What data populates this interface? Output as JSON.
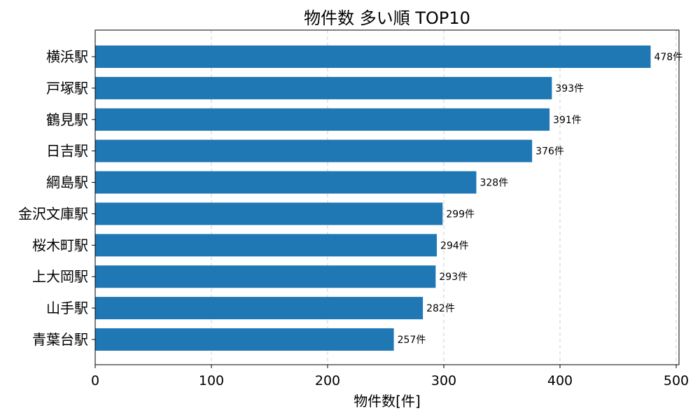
{
  "chart_data": {
    "type": "bar",
    "orientation": "horizontal",
    "title": "物件数 多い順 TOP10",
    "xlabel": "物件数[件]",
    "ylabel": "",
    "categories": [
      "横浜駅",
      "戸塚駅",
      "鶴見駅",
      "日吉駅",
      "綱島駅",
      "金沢文庫駅",
      "桜木町駅",
      "上大岡駅",
      "山手駅",
      "青葉台駅"
    ],
    "values": [
      478,
      393,
      391,
      376,
      328,
      299,
      294,
      293,
      282,
      257
    ],
    "data_labels": [
      "478件",
      "393件",
      "391件",
      "376件",
      "328件",
      "299件",
      "294件",
      "293件",
      "282件",
      "257件"
    ],
    "xlim": [
      0,
      500
    ],
    "xticks": [
      0,
      100,
      200,
      300,
      400,
      500
    ],
    "xtick_labels": [
      "0",
      "100",
      "200",
      "300",
      "400",
      "500"
    ],
    "grid": "x-dashed",
    "bar_color": "#1f77b4"
  }
}
